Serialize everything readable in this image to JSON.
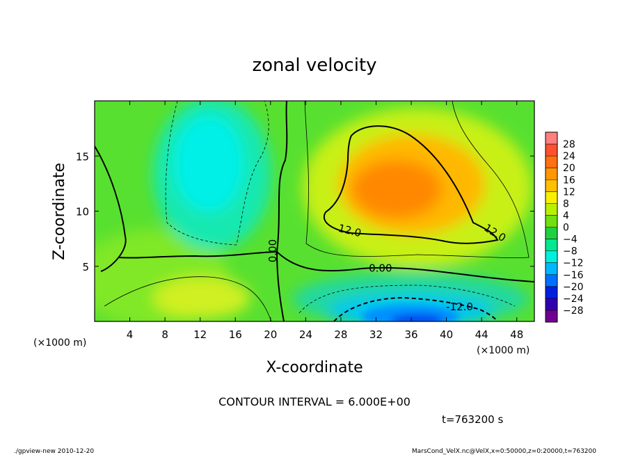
{
  "chart_data": {
    "type": "heatmap",
    "title": "zonal velocity",
    "xlabel": "X-coordinate",
    "ylabel": "Z-coordinate",
    "xunit_label": "(×1000 m)",
    "yunit_label": "(×1000 m)",
    "xlim": [
      0,
      50
    ],
    "ylim": [
      0,
      20
    ],
    "xticks": [
      4,
      8,
      12,
      16,
      20,
      24,
      28,
      32,
      36,
      40,
      44,
      48
    ],
    "yticks": [
      5,
      10,
      15
    ],
    "colorbar_ticks": [
      "28",
      "24",
      "20",
      "16",
      "12",
      "8",
      "4",
      "0",
      "−4",
      "−8",
      "−12",
      "−16",
      "−20",
      "−24",
      "−28"
    ],
    "colorbar_colors": [
      "#ff8080",
      "#ff5030",
      "#ff7010",
      "#ff9800",
      "#ffc000",
      "#f8f000",
      "#b8f000",
      "#70e010",
      "#20d040",
      "#00e890",
      "#00f0e0",
      "#00b8ff",
      "#0070ff",
      "#0020e0",
      "#3000b0",
      "#700090"
    ],
    "contour_labels": [
      {
        "text": "12.0",
        "x": 29,
        "z": 8.2,
        "rotate": 14
      },
      {
        "text": "12.0",
        "x": 45.5,
        "z": 8.0,
        "rotate": 32
      },
      {
        "text": "0.00",
        "x": 20.3,
        "z": 6.4,
        "rotate": -90
      },
      {
        "text": "0.00",
        "x": 32.5,
        "z": 4.8,
        "rotate": 0
      },
      {
        "text": "-12.0",
        "x": 41.5,
        "z": 1.3,
        "rotate": 0
      }
    ],
    "contour_interval_text": "CONTOUR INTERVAL = 6.000E+00",
    "time_text": "t=763200 s"
  },
  "footer": {
    "left": "./gpview-new  2010-12-20",
    "right": "MarsCond_VelX.nc@VelX,x=0:50000,z=0:20000,t=763200"
  }
}
